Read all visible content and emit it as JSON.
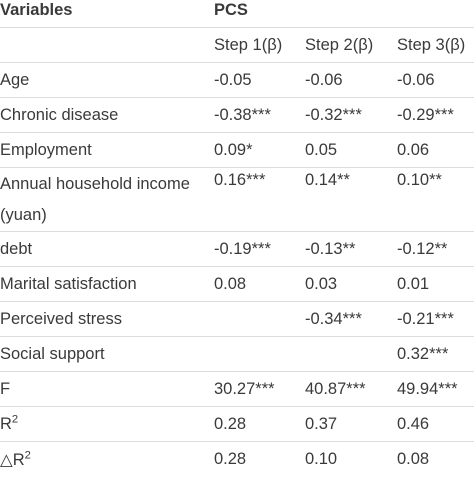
{
  "table": {
    "header": {
      "variables_label": "Variables",
      "group_label": "PCS"
    },
    "steps": [
      "Step 1(β)",
      "Step 2(β)",
      "Step 3(β)"
    ],
    "rows": [
      {
        "variable": "Age",
        "values": [
          "-0.05",
          "-0.06",
          "-0.06"
        ]
      },
      {
        "variable": "Chronic disease",
        "values": [
          "-0.38***",
          "-0.32***",
          "-0.29***"
        ]
      },
      {
        "variable": "Employment",
        "values": [
          "0.09*",
          "0.05",
          "0.06"
        ]
      },
      {
        "variable": "Annual household income (yuan)",
        "values": [
          "0.16***",
          "0.14**",
          "0.10**"
        ]
      },
      {
        "variable": "debt",
        "values": [
          "-0.19***",
          "-0.13**",
          "-0.12**"
        ]
      },
      {
        "variable": "Marital satisfaction",
        "values": [
          "0.08",
          "0.03",
          "0.01"
        ]
      },
      {
        "variable": "Perceived stress",
        "values": [
          "",
          "-0.34***",
          "-0.21***"
        ]
      },
      {
        "variable": "Social support",
        "values": [
          "",
          "",
          "0.32***"
        ]
      },
      {
        "variable": "F",
        "values": [
          "30.27***",
          "40.87***",
          "49.94***"
        ]
      },
      {
        "variable": "R",
        "superscript": "2",
        "values": [
          "0.28",
          "0.37",
          "0.46"
        ]
      },
      {
        "variable": "△R",
        "superscript": "2",
        "values": [
          "0.28",
          "0.10",
          "0.08"
        ]
      }
    ]
  }
}
